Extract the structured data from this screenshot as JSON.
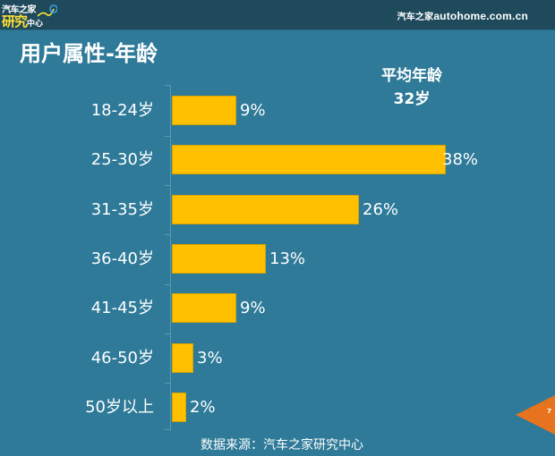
{
  "header": {
    "logo": {
      "line1": "汽车之家",
      "line2_big": "研究",
      "line2_small": "中心"
    },
    "site_cn": "汽车之家",
    "site_en": "autohome.com.cn"
  },
  "page_title": "用户属性-年龄",
  "average": {
    "label": "平均年龄",
    "value": "32岁"
  },
  "colors": {
    "background": "#2e7a98",
    "topbar": "#1e4a5c",
    "bar": "#ffc000",
    "page_badge": "#e8731e"
  },
  "chart_data": {
    "type": "bar",
    "orientation": "horizontal",
    "title": "用户属性-年龄",
    "categories": [
      "18-24岁",
      "25-30岁",
      "31-35岁",
      "36-40岁",
      "41-45岁",
      "46-50岁",
      "50岁以上"
    ],
    "values": [
      9,
      38,
      26,
      13,
      9,
      3,
      2
    ],
    "value_labels": [
      "9%",
      "38%",
      "26%",
      "13%",
      "9%",
      "3%",
      "2%"
    ],
    "unit": "%",
    "xlabel": "",
    "ylabel": "",
    "grid": false,
    "legend": null,
    "annotations": [
      "平均年龄 32岁"
    ],
    "source": "数据来源：汽车之家研究中心"
  },
  "footer": {
    "source": "数据来源：汽车之家研究中心",
    "page_number": "7"
  }
}
